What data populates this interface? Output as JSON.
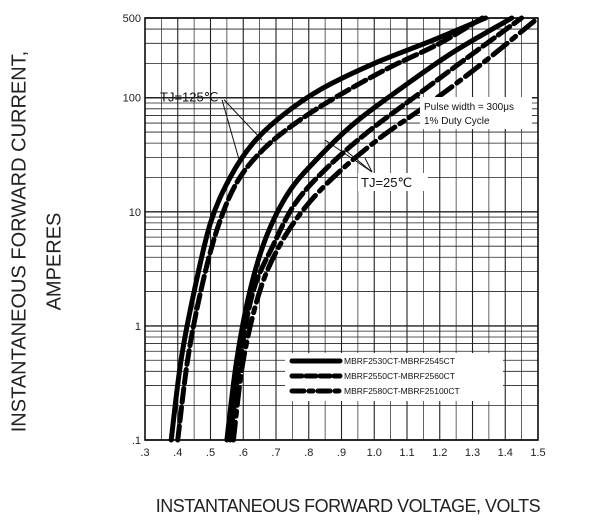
{
  "chart_data": {
    "type": "line",
    "ylabel_line1": "INSTANTANEOUS FORWARD CURRENT,",
    "ylabel_line2": "AMPERES",
    "xlabel": "INSTANTANEOUS FORWARD VOLTAGE,  VOLTS",
    "xlim": [
      0.3,
      1.5
    ],
    "ylim": [
      0.1,
      500
    ],
    "yscale": "log",
    "grid": true,
    "x_ticks": [
      ".3",
      ".4",
      ".5",
      ".6",
      ".7",
      ".8",
      ".9",
      "1.0",
      "1.1",
      "1.2",
      "1.3",
      "1.4",
      "1.5"
    ],
    "y_ticks": [
      ".1",
      "1",
      "10",
      "100",
      "500"
    ],
    "annotations": {
      "tj125": "TJ=125℃",
      "tj25": "TJ=25℃",
      "pulse_line1": "Pulse width = 300μs",
      "pulse_line2": "1% Duty Cycle"
    },
    "legend": {
      "placement": "lower-right",
      "entries": [
        {
          "label": "MBRF2530CT-MBRF2545CT",
          "style": "solid"
        },
        {
          "label": "MBRF2550CT-MBRF2560CT",
          "style": "dashed"
        },
        {
          "label": "MBRF2580CT-MBRF25100CT",
          "style": "dash-dot"
        }
      ]
    },
    "series": [
      {
        "temp": "TJ=125℃",
        "style": "solid",
        "x": [
          0.38,
          0.41,
          0.45,
          0.5,
          0.56,
          0.63,
          0.72,
          0.84,
          1.0,
          1.18,
          1.34
        ],
        "y": [
          0.1,
          0.5,
          2,
          8,
          20,
          40,
          70,
          120,
          200,
          320,
          500
        ]
      },
      {
        "temp": "TJ=125℃",
        "style": "dashed",
        "x": [
          0.4,
          0.43,
          0.47,
          0.52,
          0.58,
          0.66,
          0.76,
          0.88,
          1.04,
          1.2,
          1.33
        ],
        "y": [
          0.1,
          0.5,
          2,
          7,
          18,
          35,
          60,
          100,
          180,
          300,
          500
        ]
      },
      {
        "temp": "TJ=25℃",
        "style": "solid",
        "x": [
          0.55,
          0.58,
          0.62,
          0.67,
          0.74,
          0.83,
          0.94,
          1.08,
          1.24,
          1.42
        ],
        "y": [
          0.1,
          0.5,
          2,
          6,
          15,
          30,
          60,
          120,
          250,
          500
        ]
      },
      {
        "temp": "TJ=25℃",
        "style": "dashed",
        "x": [
          0.56,
          0.59,
          0.63,
          0.69,
          0.76,
          0.86,
          0.98,
          1.12,
          1.28,
          1.45
        ],
        "y": [
          0.1,
          0.5,
          2,
          5,
          12,
          25,
          50,
          100,
          220,
          500
        ]
      },
      {
        "temp": "TJ=25℃",
        "style": "dash-dot",
        "x": [
          0.57,
          0.6,
          0.65,
          0.71,
          0.79,
          0.89,
          1.02,
          1.17,
          1.33,
          1.5
        ],
        "y": [
          0.1,
          0.5,
          2,
          5,
          11,
          22,
          45,
          90,
          200,
          500
        ]
      }
    ]
  }
}
